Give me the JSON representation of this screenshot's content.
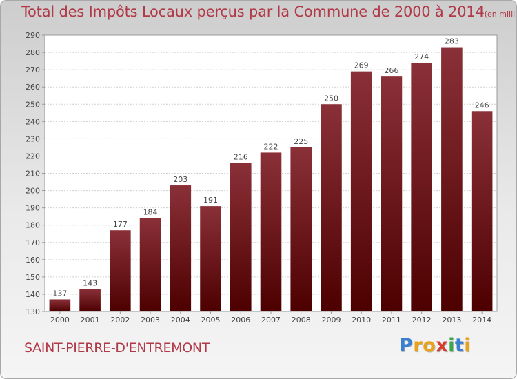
{
  "header": {
    "title": "Total des Impôts Locaux perçus par la Commune de 2000 à 2014",
    "unit": "(en milliers d'€)"
  },
  "footer": {
    "commune": "SAINT-PIERRE-D'ENTREMONT",
    "logo": "Proxiti",
    "logo_letters": [
      "P",
      "r",
      "o",
      "x",
      "i",
      "t",
      "i"
    ],
    "logo_colors": [
      "#3a7fd0",
      "#e8a21c",
      "#e8a21c",
      "#d93b2f",
      "#3aa845",
      "#3a7fd0",
      "#e8a21c"
    ]
  },
  "chart_data": {
    "type": "bar",
    "title": "Total des Impôts Locaux perçus par la Commune de 2000 à 2014",
    "unit": "(en milliers d'€)",
    "categories": [
      "2000",
      "2001",
      "2002",
      "2003",
      "2004",
      "2005",
      "2006",
      "2007",
      "2008",
      "2009",
      "2010",
      "2011",
      "2012",
      "2013",
      "2014"
    ],
    "values": [
      137,
      143,
      177,
      184,
      203,
      191,
      216,
      222,
      225,
      250,
      269,
      266,
      274,
      283,
      246
    ],
    "ylim": [
      130,
      290
    ],
    "yticks": [
      130,
      140,
      150,
      160,
      170,
      180,
      190,
      200,
      210,
      220,
      230,
      240,
      250,
      260,
      270,
      280,
      290
    ],
    "grid": true,
    "bar_color_top": "#8a3038",
    "bar_color_bottom": "#4d0000"
  }
}
